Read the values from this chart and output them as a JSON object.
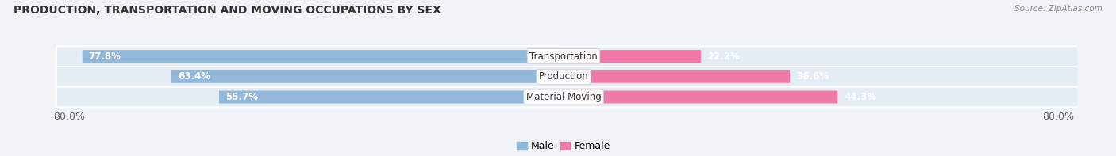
{
  "title": "PRODUCTION, TRANSPORTATION AND MOVING OCCUPATIONS BY SEX",
  "source": "Source: ZipAtlas.com",
  "categories": [
    "Transportation",
    "Production",
    "Material Moving"
  ],
  "male_values": [
    77.8,
    63.4,
    55.7
  ],
  "female_values": [
    22.2,
    36.6,
    44.3
  ],
  "male_color": "#92b8db",
  "female_color": "#f07aa8",
  "male_label": "Male",
  "female_label": "Female",
  "x_left_label": "80.0%",
  "x_right_label": "80.0%",
  "bar_height": 0.62,
  "background_color": "#f0f4f8",
  "row_bg_color": "#e4ecf4",
  "total_width": 100,
  "xlim_left": -5,
  "xlim_right": 105
}
